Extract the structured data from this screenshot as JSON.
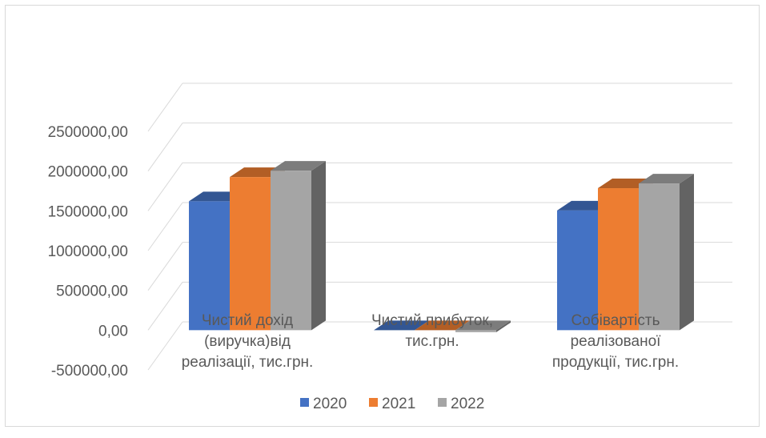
{
  "chart_data": {
    "type": "bar",
    "categories": [
      [
        "Чистий дохід",
        "(виручка)від",
        "реалізації, тис.грн."
      ],
      [
        "Чистий прибуток,",
        "тис.грн."
      ],
      [
        "Собівартість",
        "реалізованої",
        "продукції, тис.грн."
      ]
    ],
    "series": [
      {
        "name": "2020",
        "color": "#4472c4",
        "values": [
          1620000,
          0,
          1505000
        ]
      },
      {
        "name": "2021",
        "color": "#ed7d31",
        "values": [
          1925000,
          0,
          1785000
        ]
      },
      {
        "name": "2022",
        "color": "#a5a5a5",
        "values": [
          2005000,
          -25000,
          1845000
        ]
      }
    ],
    "yticks": [
      "2500000,00",
      "2000000,00",
      "1500000,00",
      "1000000,00",
      "500000,00",
      "0,00",
      "-500000,00"
    ],
    "ylim": [
      -500000,
      2500000
    ],
    "grid": true,
    "legend_position": "bottom",
    "style": "3d-clustered-column"
  }
}
